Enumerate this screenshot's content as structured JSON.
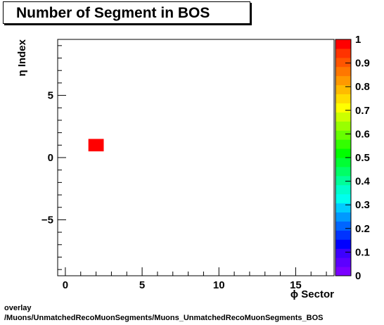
{
  "title": "Number of Segment in BOS",
  "footer": {
    "line1": "overlay",
    "line2": "/Muons/UnmatchedRecoMuonSegments/Muons_UnmatchedRecoMuonSegments_BOS"
  },
  "chart_data": {
    "type": "heatmap",
    "xlabel": "ϕ Sector",
    "ylabel": "η Index",
    "xlim": [
      -0.5,
      17.5
    ],
    "ylim": [
      -9.5,
      9.5
    ],
    "x_ticks": [
      0,
      5,
      10,
      15
    ],
    "y_ticks": [
      -5,
      0,
      5
    ],
    "y_tick_labels": [
      "−5",
      "0",
      "5"
    ],
    "cells": [
      {
        "x": 2,
        "y": 1,
        "value": 1
      }
    ],
    "zlim": [
      0,
      1
    ],
    "colorbar_ticks": [
      "0",
      "0.1",
      "0.2",
      "0.3",
      "0.4",
      "0.5",
      "0.6",
      "0.7",
      "0.8",
      "0.9",
      "1"
    ],
    "colorbar_colors": [
      "#7a00ff",
      "#5c00ff",
      "#3d00ff",
      "#0000ff",
      "#0033ff",
      "#0066ff",
      "#0099ff",
      "#00ccff",
      "#00ffee",
      "#00ffcc",
      "#00ff99",
      "#00ff66",
      "#00ff33",
      "#00ff00",
      "#33ff00",
      "#66ff00",
      "#99ff00",
      "#ccff00",
      "#ffff00",
      "#ffdd00",
      "#ffbb00",
      "#ff9900",
      "#ff7700",
      "#ff5500",
      "#ff3300",
      "#ff0000"
    ],
    "grid": false
  }
}
